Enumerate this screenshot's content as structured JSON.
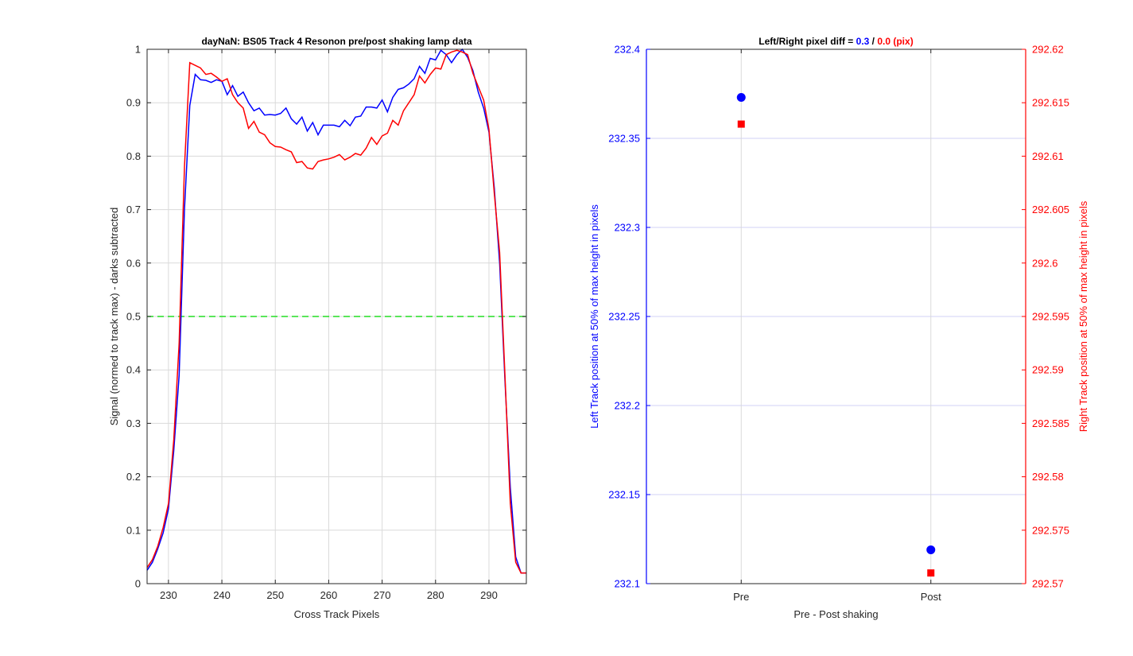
{
  "chart_data": [
    {
      "type": "line",
      "title": "dayNaN: BS05  Track 4 Resonon pre/post shaking lamp data",
      "xlabel": "Cross Track Pixels",
      "ylabel": "Signal (normed to track max) - darks subtracted",
      "xlim": [
        226,
        297
      ],
      "ylim": [
        0,
        1
      ],
      "xticks": [
        230,
        240,
        250,
        260,
        270,
        280,
        290
      ],
      "yticks": [
        0,
        0.1,
        0.2,
        0.3,
        0.4,
        0.5,
        0.6,
        0.7,
        0.8,
        0.9,
        1
      ],
      "grid": true,
      "threshold": {
        "y": 0.5,
        "color": "#22dd22",
        "style": "dashed"
      },
      "series": [
        {
          "color": "#0000ff",
          "x": [
            226,
            227,
            228,
            229,
            230,
            231,
            232,
            233,
            234,
            235,
            236,
            237,
            238,
            239,
            240,
            241,
            242,
            243,
            244,
            245,
            246,
            247,
            248,
            249,
            250,
            251,
            252,
            253,
            254,
            255,
            256,
            257,
            258,
            259,
            260,
            261,
            262,
            263,
            264,
            265,
            266,
            267,
            268,
            269,
            270,
            271,
            272,
            273,
            274,
            275,
            276,
            277,
            278,
            279,
            280,
            281,
            282,
            283,
            284,
            285,
            286,
            287,
            288,
            289,
            290,
            291,
            292,
            293,
            294,
            295,
            296,
            297
          ],
          "y": [
            0.025,
            0.04,
            0.065,
            0.095,
            0.14,
            0.25,
            0.39,
            0.7,
            0.895,
            0.953,
            0.943,
            0.942,
            0.938,
            0.943,
            0.94,
            0.915,
            0.932,
            0.912,
            0.92,
            0.9,
            0.885,
            0.89,
            0.877,
            0.878,
            0.877,
            0.88,
            0.89,
            0.87,
            0.86,
            0.873,
            0.847,
            0.863,
            0.84,
            0.858,
            0.858,
            0.858,
            0.855,
            0.867,
            0.857,
            0.873,
            0.875,
            0.892,
            0.892,
            0.89,
            0.905,
            0.883,
            0.91,
            0.925,
            0.928,
            0.935,
            0.945,
            0.968,
            0.955,
            0.983,
            0.98,
            0.998,
            0.99,
            0.975,
            0.99,
            1.0,
            0.985,
            0.96,
            0.92,
            0.89,
            0.845,
            0.74,
            0.6,
            0.38,
            0.18,
            0.05,
            0.02,
            0.02
          ]
        },
        {
          "color": "#ff0000",
          "x": [
            226,
            227,
            228,
            229,
            230,
            231,
            232,
            233,
            234,
            235,
            236,
            237,
            238,
            239,
            240,
            241,
            242,
            243,
            244,
            245,
            246,
            247,
            248,
            249,
            250,
            251,
            252,
            253,
            254,
            255,
            256,
            257,
            258,
            259,
            260,
            261,
            262,
            263,
            264,
            265,
            266,
            267,
            268,
            269,
            270,
            271,
            272,
            273,
            274,
            275,
            276,
            277,
            278,
            279,
            280,
            281,
            282,
            283,
            284,
            285,
            286,
            287,
            288,
            289,
            290,
            291,
            292,
            293,
            294,
            295,
            296,
            297
          ],
          "y": [
            0.03,
            0.045,
            0.07,
            0.105,
            0.15,
            0.27,
            0.45,
            0.78,
            0.975,
            0.97,
            0.965,
            0.953,
            0.955,
            0.948,
            0.94,
            0.945,
            0.915,
            0.9,
            0.89,
            0.852,
            0.865,
            0.845,
            0.84,
            0.825,
            0.818,
            0.817,
            0.812,
            0.808,
            0.788,
            0.79,
            0.778,
            0.776,
            0.79,
            0.793,
            0.795,
            0.798,
            0.803,
            0.793,
            0.798,
            0.805,
            0.802,
            0.815,
            0.835,
            0.822,
            0.838,
            0.843,
            0.867,
            0.858,
            0.885,
            0.9,
            0.915,
            0.95,
            0.937,
            0.953,
            0.965,
            0.963,
            0.99,
            0.995,
            0.998,
            0.995,
            0.99,
            0.955,
            0.93,
            0.905,
            0.85,
            0.73,
            0.62,
            0.39,
            0.15,
            0.04,
            0.02,
            0.02
          ]
        }
      ]
    },
    {
      "type": "scatter",
      "title_parts": [
        {
          "text": "Left/Right pixel diff = ",
          "color": "#000000"
        },
        {
          "text": "0.3",
          "color": "#0000ff"
        },
        {
          "text": " / ",
          "color": "#000000"
        },
        {
          "text": "0.0 (pix)",
          "color": "#ff0000"
        }
      ],
      "xlabel": "Pre - Post shaking",
      "categories": [
        "Pre",
        "Post"
      ],
      "grid": true,
      "left_axis": {
        "label": "Left Track position at 50% of max height in pixels",
        "color": "#0000ff",
        "ylim": [
          232.1,
          232.4
        ],
        "ticks": [
          "232.1",
          "232.15",
          "232.2",
          "232.25",
          "232.3",
          "232.35",
          "232.4"
        ],
        "values": [
          232.373,
          232.119
        ]
      },
      "right_axis": {
        "label": "Right Track position at 50% of max height in pixels",
        "color": "#ff0000",
        "ylim": [
          292.57,
          292.62
        ],
        "ticks": [
          "292.57",
          "292.575",
          "292.58",
          "292.585",
          "292.59",
          "292.595",
          "292.6",
          "292.605",
          "292.61",
          "292.615",
          "292.62"
        ],
        "values": [
          292.613,
          292.571
        ]
      }
    }
  ]
}
